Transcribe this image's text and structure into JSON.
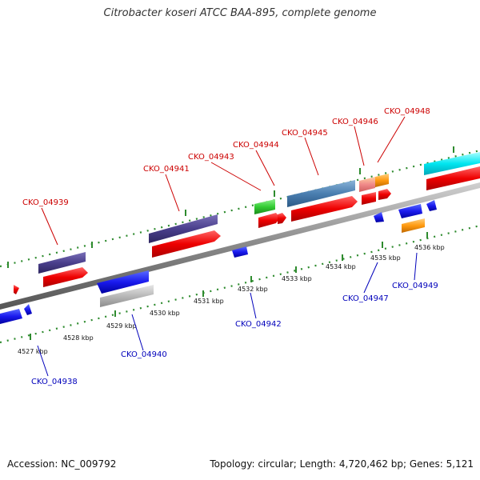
{
  "title": "Citrobacter koseri ATCC BAA-895, complete genome",
  "accession": "Accession: NC_009792",
  "topology": "Topology: circular; Length: 4,720,462 bp; Genes: 5,121",
  "colors": {
    "forward_label": "#cc0000",
    "reverse_label": "#0000bb",
    "backbone": "#888888",
    "dots": "#2e8b2e"
  },
  "scale": {
    "unit": "kbp",
    "ticks": [
      {
        "label": "4527 kbp",
        "kbp": 4527
      },
      {
        "label": "4528 kbp",
        "kbp": 4528
      },
      {
        "label": "4529 kbp",
        "kbp": 4529
      },
      {
        "label": "4530 kbp",
        "kbp": 4530
      },
      {
        "label": "4531 kbp",
        "kbp": 4531
      },
      {
        "label": "4532 kbp",
        "kbp": 4532
      },
      {
        "label": "4533 kbp",
        "kbp": 4533
      },
      {
        "label": "4534 kbp",
        "kbp": 4534
      },
      {
        "label": "4535 kbp",
        "kbp": 4535
      },
      {
        "label": "4536 kbp",
        "kbp": 4536
      }
    ]
  },
  "genes": [
    {
      "label": "CKO_04938",
      "strand": "reverse"
    },
    {
      "label": "CKO_04939",
      "strand": "forward"
    },
    {
      "label": "CKO_04940",
      "strand": "reverse"
    },
    {
      "label": "CKO_04941",
      "strand": "forward"
    },
    {
      "label": "CKO_04942",
      "strand": "reverse"
    },
    {
      "label": "CKO_04943",
      "strand": "forward"
    },
    {
      "label": "CKO_04944",
      "strand": "forward"
    },
    {
      "label": "CKO_04945",
      "strand": "forward"
    },
    {
      "label": "CKO_04946",
      "strand": "forward"
    },
    {
      "label": "CKO_04947",
      "strand": "reverse"
    },
    {
      "label": "CKO_04948",
      "strand": "forward"
    },
    {
      "label": "CKO_04949",
      "strand": "reverse"
    }
  ]
}
